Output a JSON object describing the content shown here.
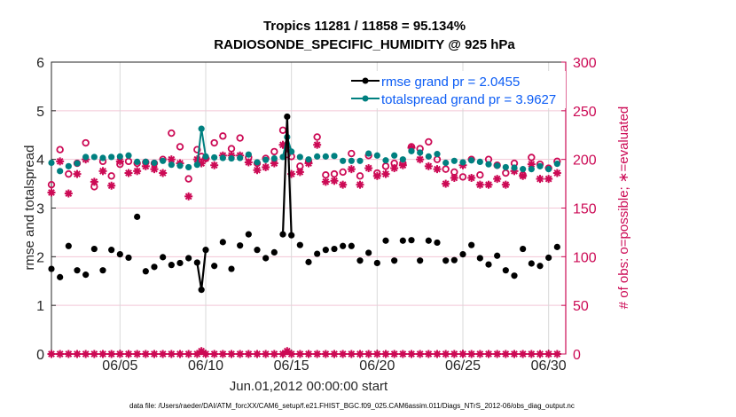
{
  "chart_data": {
    "type": "line",
    "title": [
      "Tropics 11281 / 11858 = 95.134%",
      "RADIOSONDE_SPECIFIC_HUMIDITY @ 925 hPa"
    ],
    "xlabel": "Jun.01,2012 00:00:00 start",
    "ylabel": "rmse and totalspread",
    "y2label": "# of obs: o=possible; ∗=evaluated",
    "x_ticks": [
      "06/05",
      "06/10",
      "06/15",
      "06/20",
      "06/25",
      "06/30"
    ],
    "x_tick_days": [
      5,
      10,
      15,
      20,
      25,
      30
    ],
    "xlim_days": [
      1,
      31
    ],
    "y_ticks": [
      "0",
      "1",
      "2",
      "3",
      "4",
      "5",
      "6"
    ],
    "ylim": [
      0,
      6
    ],
    "y2_ticks": [
      "0",
      "50",
      "100",
      "150",
      "200",
      "250",
      "300"
    ],
    "y2lim": [
      0,
      300
    ],
    "grid": true,
    "legend_position": "top-right",
    "x_days": [
      1.0,
      1.5,
      2.0,
      2.5,
      3.0,
      3.5,
      4.0,
      4.5,
      5.0,
      5.5,
      6.0,
      6.5,
      7.0,
      7.5,
      8.0,
      8.5,
      9.0,
      9.5,
      9.75,
      10.0,
      10.5,
      11.0,
      11.5,
      12.0,
      12.5,
      13.0,
      13.5,
      14.0,
      14.5,
      14.75,
      15.0,
      15.5,
      16.0,
      16.5,
      17.0,
      17.5,
      18.0,
      18.5,
      19.0,
      19.5,
      20.0,
      20.5,
      21.0,
      21.5,
      22.0,
      22.5,
      23.0,
      23.5,
      24.0,
      24.5,
      25.0,
      25.5,
      26.0,
      26.5,
      27.0,
      27.5,
      28.0,
      28.5,
      29.0,
      29.5,
      30.0,
      30.5
    ],
    "series": [
      {
        "name": "rmse grand pr = 2.0455",
        "color": "#000000",
        "values": [
          1.75,
          1.58,
          2.22,
          1.72,
          1.63,
          2.16,
          1.72,
          2.14,
          2.05,
          1.98,
          2.82,
          1.7,
          1.79,
          1.99,
          1.83,
          1.87,
          1.97,
          1.88,
          1.32,
          2.14,
          1.81,
          2.3,
          1.75,
          2.23,
          2.46,
          2.14,
          1.97,
          2.09,
          2.46,
          4.88,
          2.44,
          2.24,
          1.89,
          2.06,
          2.14,
          2.16,
          2.22,
          2.22,
          1.92,
          2.08,
          1.87,
          2.33,
          1.92,
          2.33,
          2.34,
          1.92,
          2.33,
          2.29,
          1.92,
          1.93,
          2.05,
          2.24,
          1.97,
          1.84,
          2.02,
          1.72,
          1.61,
          2.16,
          1.86,
          1.81,
          1.98,
          2.2
        ]
      },
      {
        "name": "totalspread grand pr = 3.9627",
        "color": "#008080",
        "values": [
          3.93,
          3.76,
          3.86,
          3.92,
          4.05,
          4.05,
          4.03,
          4.05,
          4.06,
          4.08,
          3.95,
          3.95,
          3.93,
          3.97,
          3.89,
          3.87,
          3.84,
          3.89,
          4.63,
          4.06,
          4.04,
          4.03,
          4.02,
          4.03,
          4.1,
          3.94,
          3.99,
          4.02,
          4.05,
          4.46,
          4.16,
          4.05,
          4.0,
          4.06,
          4.06,
          4.07,
          3.97,
          3.97,
          3.97,
          4.12,
          4.08,
          3.98,
          4.08,
          4.0,
          4.17,
          4.14,
          4.06,
          4.11,
          3.93,
          3.97,
          3.94,
          3.98,
          3.95,
          3.9,
          3.87,
          3.84,
          3.83,
          3.8,
          3.8,
          3.86,
          3.8,
          3.91
        ]
      },
      {
        "name": "obs possible",
        "axis": "right",
        "color": "#cc0a55",
        "marker": "circle-open",
        "values": [
          174,
          210,
          185,
          196,
          217,
          172,
          198,
          183,
          195,
          198,
          196,
          197,
          196,
          200,
          227,
          213,
          180,
          210,
          203,
          201,
          217,
          224,
          211,
          222,
          202,
          196,
          201,
          208,
          230,
          205,
          203,
          193,
          198,
          223,
          184,
          185,
          187,
          206,
          183,
          204,
          186,
          193,
          196,
          196,
          213,
          211,
          218,
          200,
          190,
          187,
          182,
          200,
          184,
          200,
          194,
          186,
          196,
          184,
          202,
          195,
          191,
          198
        ]
      },
      {
        "name": "obs evaluated",
        "axis": "right",
        "color": "#cc0a55",
        "marker": "asterisk",
        "values": [
          166,
          198,
          165,
          185,
          200,
          177,
          188,
          173,
          198,
          186,
          188,
          193,
          190,
          186,
          200,
          196,
          162,
          200,
          196,
          201,
          194,
          204,
          204,
          204,
          197,
          189,
          192,
          196,
          215,
          212,
          185,
          187,
          196,
          215,
          177,
          178,
          174,
          190,
          174,
          191,
          183,
          185,
          191,
          194,
          212,
          200,
          193,
          190,
          175,
          181,
          194,
          181,
          174,
          174,
          180,
          174,
          188,
          183,
          195,
          180,
          180,
          186
        ]
      },
      {
        "name": "obs possible (bottom)",
        "axis": "right",
        "color": "#cc0a55",
        "marker": "circle-open",
        "note": "near-zero counts at base",
        "values_all": 0,
        "exceptions": {
          "9.75": 3,
          "14.75": 3
        }
      }
    ]
  },
  "footnote": "data file: /Users/raeder/DAI/ATM_forcXX/CAM6_setup/f.e21.FHIST_BGC.f09_025.CAM6assim.011/Diags_NTrS_2012-06/obs_diag_output.nc"
}
